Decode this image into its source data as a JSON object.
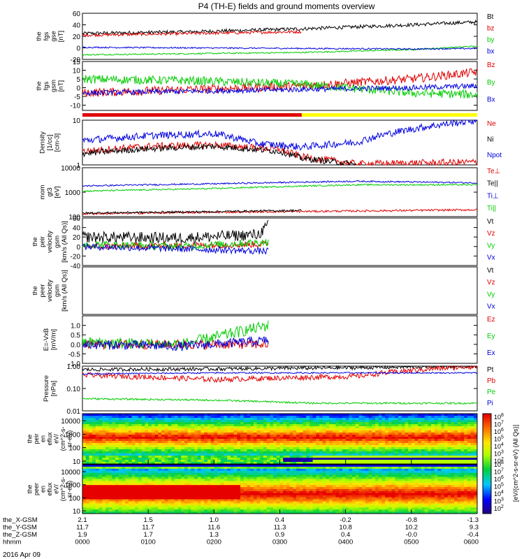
{
  "title": "P4 (TH-E) fields and ground moments overview",
  "date_label": "2016 Apr 09",
  "colors": {
    "black": "#000000",
    "red": "#e00000",
    "green": "#00cc00",
    "blue": "#0000dd",
    "mode_bar_red": "#e00000",
    "mode_bar_yellow": "#ffff00"
  },
  "chart_data": [
    {
      "type": "line",
      "ylabel": [
        "the",
        "fgs",
        "gse",
        "[nT]"
      ],
      "yticks": [
        "60",
        "40",
        "20",
        "0",
        "-20"
      ],
      "ylim": [
        -20,
        60
      ],
      "series": [
        {
          "name": "Bt",
          "color": "black",
          "x": [
            0,
            100,
            200,
            300,
            360
          ],
          "y": [
            25,
            28,
            33,
            40,
            45
          ]
        },
        {
          "name": "bz",
          "color": "red",
          "x": [
            0,
            100,
            200
          ],
          "y": [
            22,
            25,
            28
          ]
        },
        {
          "name": "by",
          "color": "green",
          "x": [
            0,
            100,
            200,
            300,
            360
          ],
          "y": [
            -12,
            -10,
            -8,
            -3,
            3
          ]
        },
        {
          "name": "bx",
          "color": "blue",
          "x": [
            0,
            100,
            200,
            300,
            360
          ],
          "y": [
            1,
            0,
            -1,
            -2,
            -1
          ]
        }
      ]
    },
    {
      "type": "line",
      "ylabel": [
        "the",
        "fgs",
        "gsm",
        "[nT]"
      ],
      "yticks": [
        "15",
        "10",
        "5",
        "0",
        "-5",
        "-10"
      ],
      "ylim": [
        -13,
        15
      ],
      "series": [
        {
          "name": "Bz",
          "color": "red",
          "x": [
            0,
            100,
            200,
            300,
            360
          ],
          "y": [
            -3,
            -1,
            1,
            5,
            9
          ]
        },
        {
          "name": "By",
          "color": "green",
          "x": [
            0,
            100,
            200,
            300,
            360
          ],
          "y": [
            5,
            4,
            2,
            -3,
            -4
          ]
        },
        {
          "name": "Bx",
          "color": "blue",
          "x": [
            0,
            100,
            200,
            300,
            360
          ],
          "y": [
            -3,
            -2,
            -1,
            0,
            1
          ]
        }
      ]
    },
    {
      "type": "line",
      "ylabel": [
        "Density",
        "[1/cc]",
        "[cm-3]"
      ],
      "yticks": [
        "10",
        "1"
      ],
      "yscale": "log",
      "ylim": [
        1,
        10
      ],
      "series": [
        {
          "name": "Ne",
          "color": "red",
          "x": [
            0,
            60,
            120,
            180,
            200,
            250,
            360
          ],
          "y": [
            2.0,
            2.6,
            2.8,
            2.2,
            1.5,
            1.05,
            1.15
          ]
        },
        {
          "name": "Ni",
          "color": "black",
          "x": [
            0,
            60,
            120,
            180,
            200,
            250
          ],
          "y": [
            1.8,
            2.3,
            2.6,
            2.0,
            1.4,
            1.0
          ]
        },
        {
          "name": "Npot",
          "color": "blue",
          "x": [
            0,
            60,
            120,
            160,
            200,
            250,
            360
          ],
          "y": [
            3.5,
            4.5,
            5.0,
            3.0,
            2.5,
            3.2,
            10.0
          ]
        }
      ]
    },
    {
      "type": "line",
      "ylabel": [
        "mom",
        "gt3",
        "[eV]"
      ],
      "yticks": [
        "10000",
        "1000",
        "100"
      ],
      "yscale": "log",
      "ylim": [
        100,
        10000
      ],
      "series": [
        {
          "name": "Te⊥",
          "color": "red",
          "x": [
            0,
            120,
            250,
            360
          ],
          "y": [
            130,
            150,
            170,
            190
          ]
        },
        {
          "name": "Te||",
          "color": "black",
          "x": [
            0,
            120,
            200
          ],
          "y": [
            140,
            160,
            180
          ]
        },
        {
          "name": "Ti⊥",
          "color": "blue",
          "x": [
            0,
            120,
            250,
            360
          ],
          "y": [
            1800,
            2200,
            2800,
            2400
          ]
        },
        {
          "name": "Ti||",
          "color": "green",
          "x": [
            0,
            120,
            250,
            360
          ],
          "y": [
            1100,
            1400,
            2000,
            2000
          ]
        }
      ]
    },
    {
      "type": "line",
      "ylabel": [
        "the",
        "peir",
        "velocity",
        "gsm",
        "[km/s (All Qs)]"
      ],
      "yticks": [
        "60",
        "40",
        "20",
        "0",
        "-20",
        "-40"
      ],
      "ylim": [
        -40,
        60
      ],
      "series": [
        {
          "name": "Vt",
          "color": "black",
          "x": [
            0,
            90,
            160,
            170
          ],
          "y": [
            20,
            18,
            25,
            45
          ]
        },
        {
          "name": "Vz",
          "color": "red",
          "x": [
            0,
            90,
            170
          ],
          "y": [
            0,
            2,
            5
          ]
        },
        {
          "name": "Vy",
          "color": "green",
          "x": [
            0,
            90,
            170
          ],
          "y": [
            5,
            0,
            10
          ]
        },
        {
          "name": "Vx",
          "color": "blue",
          "x": [
            0,
            90,
            170
          ],
          "y": [
            0,
            -5,
            -10
          ]
        }
      ]
    },
    {
      "type": "line",
      "ylabel": [
        "the",
        "peer",
        "velocity",
        "gsm",
        "[km/s (All Qs)]"
      ],
      "yticks": [],
      "series": [
        {
          "name": "Vt",
          "color": "black",
          "x": [],
          "y": []
        },
        {
          "name": "Vz",
          "color": "red",
          "x": [],
          "y": []
        },
        {
          "name": "Vy",
          "color": "green",
          "x": [],
          "y": []
        },
        {
          "name": "Vx",
          "color": "blue",
          "x": [],
          "y": []
        }
      ]
    },
    {
      "type": "line",
      "ylabel": [
        "E=-VxB",
        "[mV/m]"
      ],
      "yticks": [
        "1.0",
        "0.5",
        "0.0",
        "-0.5",
        "-1.0"
      ],
      "ylim": [
        -1.0,
        1.5
      ],
      "series": [
        {
          "name": "Ez",
          "color": "red",
          "x": [
            0,
            90,
            170
          ],
          "y": [
            0.0,
            0.0,
            0.0
          ]
        },
        {
          "name": "Ey",
          "color": "green",
          "x": [
            0,
            90,
            170
          ],
          "y": [
            0.1,
            0.0,
            1.0
          ]
        },
        {
          "name": "Ex",
          "color": "blue",
          "x": [
            0,
            90,
            170
          ],
          "y": [
            0.0,
            -0.1,
            0.2
          ]
        }
      ]
    },
    {
      "type": "line",
      "ylabel": [
        "Pressure",
        "[nPa]"
      ],
      "yticks": [
        "1.00",
        "0.10",
        "0.01"
      ],
      "yscale": "log",
      "ylim": [
        0.01,
        1.0
      ],
      "series": [
        {
          "name": "Pt",
          "color": "black",
          "x": [
            0,
            120,
            250,
            360
          ],
          "y": [
            0.7,
            0.75,
            0.85,
            1.0
          ]
        },
        {
          "name": "Pb",
          "color": "red",
          "x": [
            0,
            120,
            250,
            360
          ],
          "y": [
            0.4,
            0.25,
            0.35,
            1.0
          ]
        },
        {
          "name": "Pe",
          "color": "green",
          "x": [
            0,
            120,
            210,
            360
          ],
          "y": [
            0.035,
            0.03,
            0.022,
            0.022
          ]
        },
        {
          "name": "Pi",
          "color": "blue",
          "x": [
            0,
            120,
            250,
            360
          ],
          "y": [
            0.45,
            0.5,
            0.5,
            0.5
          ]
        }
      ]
    },
    {
      "type": "heatmap",
      "ylabel": [
        "the",
        "peir",
        "en",
        "eflux",
        "eV/",
        "(cm^2-s-",
        "sr-eV)"
      ],
      "yticks": [
        "10000",
        "1000",
        "100",
        "10"
      ],
      "yscale": "log"
    },
    {
      "type": "heatmap",
      "ylabel": [
        "the",
        "peer",
        "en",
        "eflux",
        "eV/",
        "(cm^2-s-",
        "sr-eV)"
      ],
      "yticks": [
        "10000",
        "1000",
        "100",
        "10"
      ],
      "yscale": "log"
    }
  ],
  "colorbar": {
    "label": "[eV/(cm^2-s-sr-eV) (All Qs)]",
    "upper_ticks": [
      "10^8",
      "10^7",
      "10^6",
      "10^5",
      "10^4",
      "10^3",
      "10^2"
    ],
    "lower_ticks": [
      "10^8",
      "10^7",
      "10^6",
      "10^5",
      "10^4",
      "10^3",
      "10^2"
    ]
  },
  "x_axis": {
    "row_labels": [
      "the_X-GSM",
      "the_Y-GSM",
      "the_Z-GSM",
      "hhmm"
    ],
    "rows": [
      [
        "2.1",
        "1.5",
        "1.0",
        "0.4",
        "-0.2",
        "-0.8",
        "-1.3"
      ],
      [
        "11.7",
        "11.7",
        "11.6",
        "11.3",
        "10.8",
        "10.2",
        "9.3"
      ],
      [
        "1.9",
        "1.7",
        "1.3",
        "0.9",
        "0.4",
        "-0.0",
        "-0.4"
      ],
      [
        "0000",
        "0100",
        "0200",
        "0300",
        "0400",
        "0500",
        "0600"
      ]
    ]
  }
}
